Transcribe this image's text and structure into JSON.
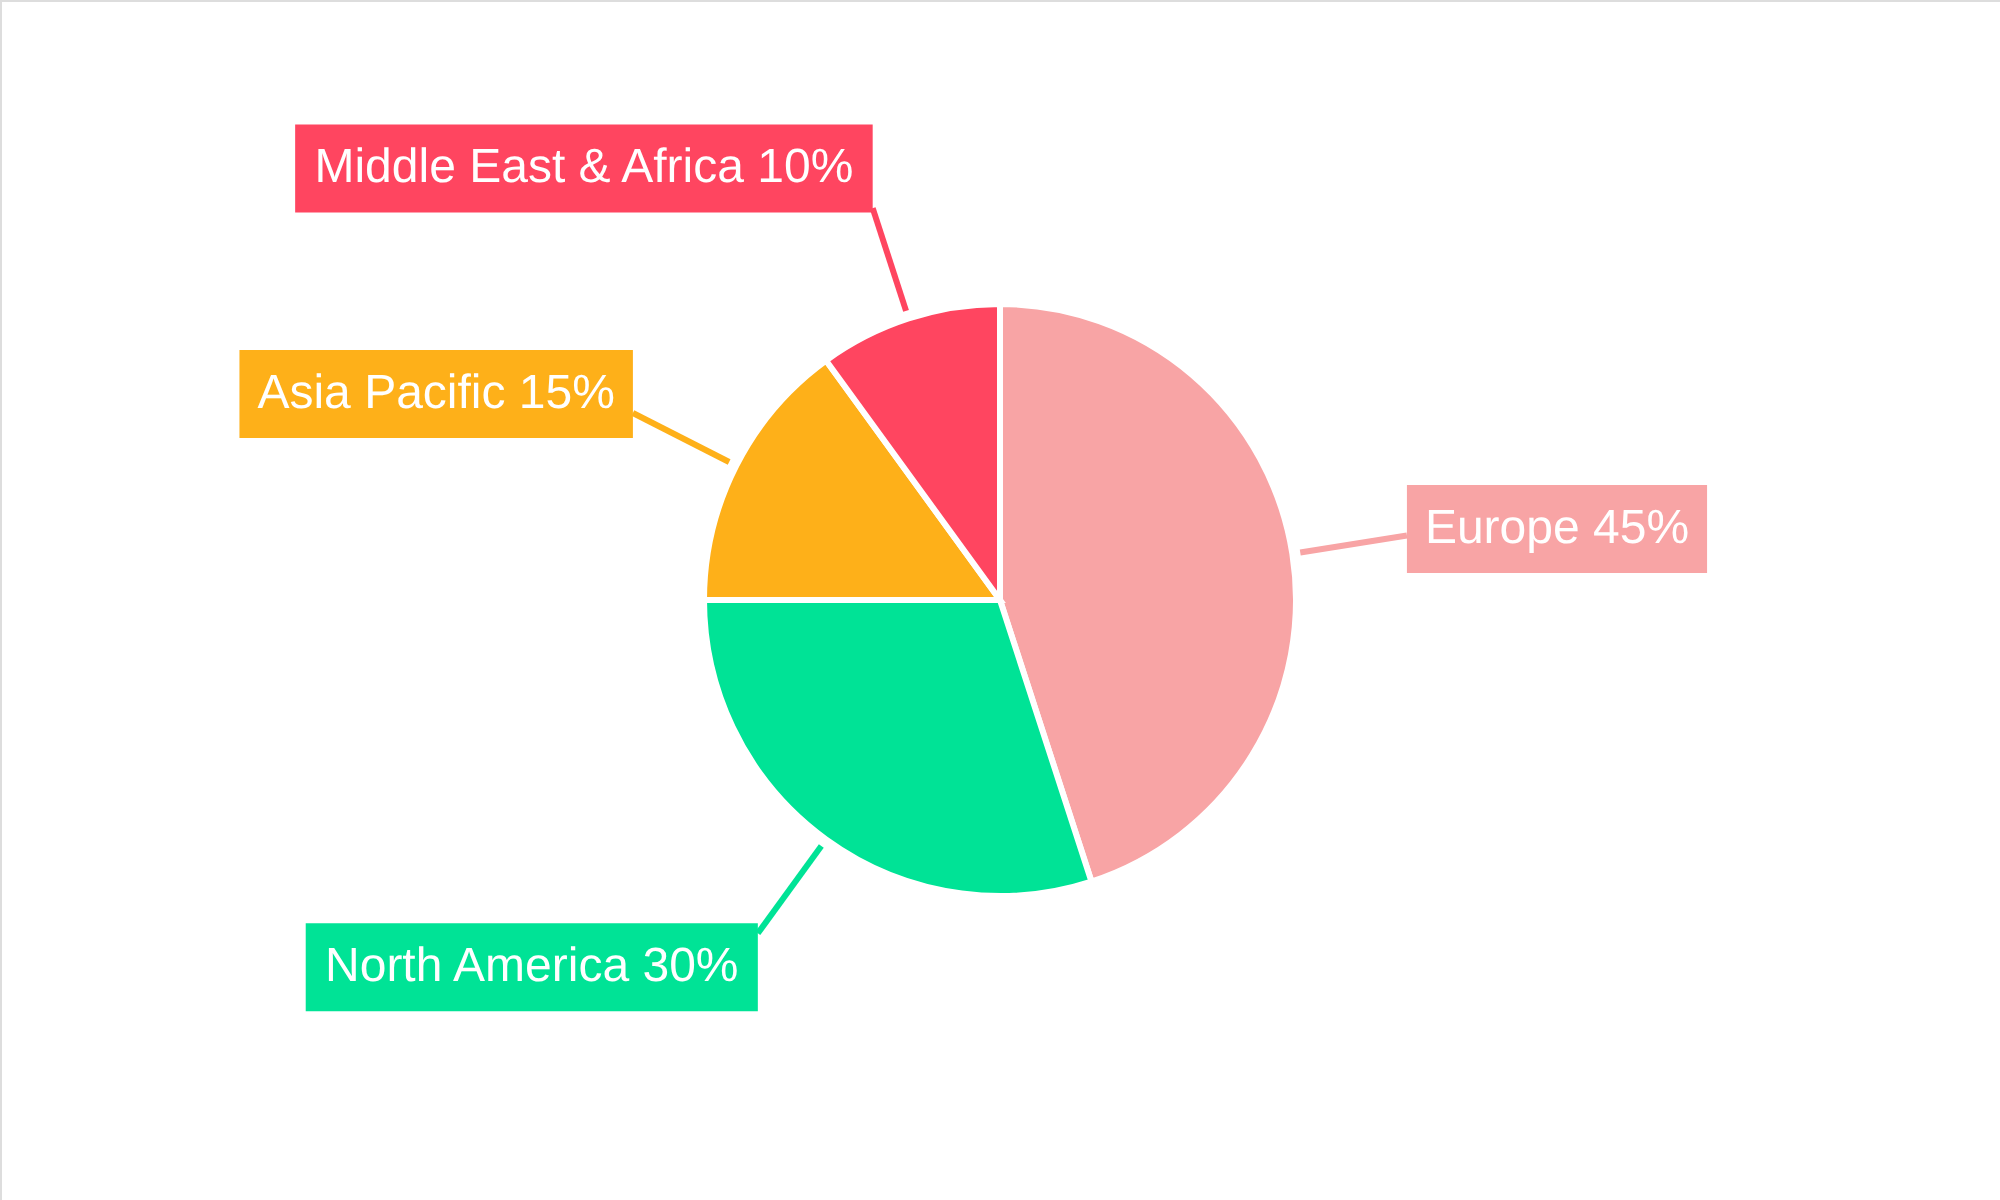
{
  "chart_data": {
    "type": "pie",
    "categories": [
      "Europe",
      "North America",
      "Asia Pacific",
      "Middle East & Africa"
    ],
    "values": [
      45,
      30,
      15,
      10
    ],
    "colors": [
      "#f8a4a5",
      "#00e396",
      "#feb019",
      "#ff4560"
    ],
    "value_labels": [
      "45%",
      "30%",
      "15%",
      "10%"
    ]
  }
}
